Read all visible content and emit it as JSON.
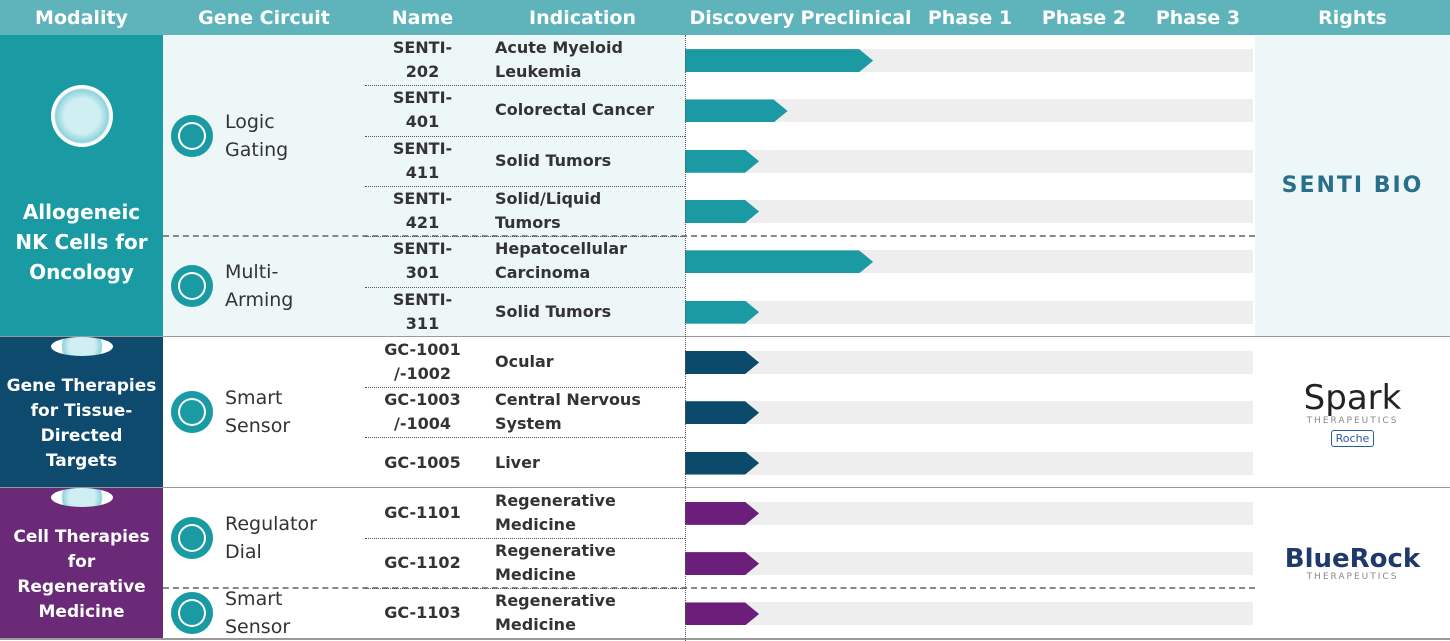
{
  "header": {
    "columns": [
      "Modality",
      "Gene Circuit",
      "Name",
      "Indication"
    ],
    "stages": [
      "Discovery",
      "Preclinical",
      "Phase 1",
      "Phase 2",
      "Phase 3"
    ],
    "rights": "Rights"
  },
  "sections": [
    {
      "modality": "Allogeneic NK Cells for Oncology",
      "color": "#1a9aa3",
      "bar_color": "#1b9aa3",
      "circuits": [
        {
          "label": "Logic Gating",
          "rows": 4
        },
        {
          "label": "Multi-Arming",
          "rows": 2
        }
      ],
      "programs": [
        {
          "name": "SENTI-202",
          "indication": "Acute Myeloid Leukemia",
          "progress": 1.65
        },
        {
          "name": "SENTI-401",
          "indication": "Colorectal Cancer",
          "progress": 0.9
        },
        {
          "name": "SENTI-411",
          "indication": "Solid Tumors",
          "progress": 0.65
        },
        {
          "name": "SENTI-421",
          "indication": "Solid/Liquid Tumors",
          "progress": 0.65
        },
        {
          "name": "SENTI-301",
          "indication": "Hepatocellular Carcinoma",
          "progress": 1.65
        },
        {
          "name": "SENTI-311",
          "indication": "Solid Tumors",
          "progress": 0.65
        }
      ],
      "rights": [
        "SENTI BIO"
      ]
    },
    {
      "modality": "Gene Therapies for Tissue-Directed Targets",
      "color": "#0e4a6e",
      "bar_color": "#0b4a6a",
      "circuits": [
        {
          "label": "Smart Sensor",
          "rows": 3
        }
      ],
      "programs": [
        {
          "name": "GC-1001 /-1002",
          "indication": "Ocular",
          "progress": 0.65
        },
        {
          "name": "GC-1003 /-1004",
          "indication": "Central Nervous System",
          "progress": 0.65
        },
        {
          "name": "GC-1005",
          "indication": "Liver",
          "progress": 0.65
        }
      ],
      "rights": [
        "Spark",
        "THERAPEUTICS",
        "Roche"
      ]
    },
    {
      "modality": "Cell Therapies for Regenerative Medicine",
      "color": "#6a2a78",
      "bar_color": "#6b1f7a",
      "circuits": [
        {
          "label": "Regulator Dial",
          "rows": 2
        },
        {
          "label": "Smart Sensor",
          "rows": 1
        }
      ],
      "programs": [
        {
          "name": "GC-1101",
          "indication": "Regenerative Medicine",
          "progress": 0.65
        },
        {
          "name": "GC-1102",
          "indication": "Regenerative Medicine",
          "progress": 0.65
        },
        {
          "name": "GC-1103",
          "indication": "Regenerative Medicine",
          "progress": 0.65
        }
      ],
      "rights": [
        "BlueRock",
        "THERAPEUTICS"
      ]
    }
  ]
}
